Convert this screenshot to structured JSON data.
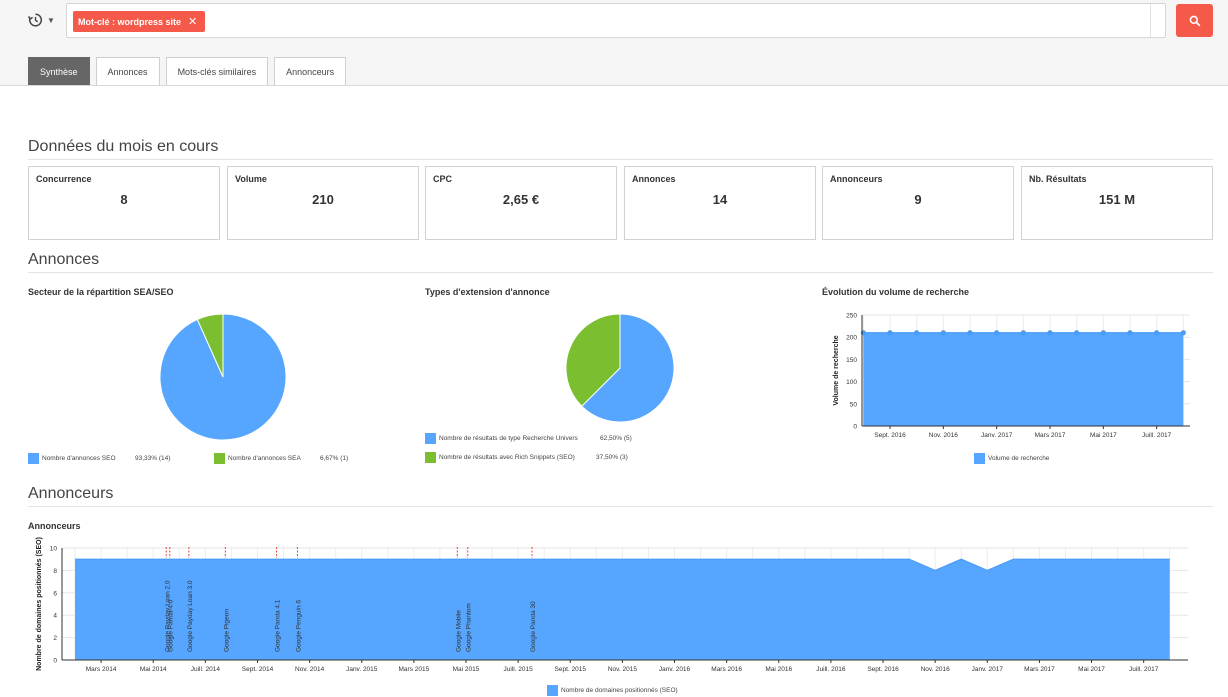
{
  "colors": {
    "accent": "#f4594a",
    "blue": "#56a5ff",
    "green": "#7bbf31",
    "event_line": "#e8453c"
  },
  "search": {
    "tag_label": "Mot-clé : wordpress site",
    "tag_close": "✕"
  },
  "tabs": [
    {
      "label": "Synthèse",
      "active": true
    },
    {
      "label": "Annonces",
      "active": false
    },
    {
      "label": "Mots-clés similaires",
      "active": false
    },
    {
      "label": "Annonceurs",
      "active": false
    }
  ],
  "sections": {
    "current_month": "Données du mois en cours",
    "annonces": "Annonces",
    "annonceurs": "Annonceurs"
  },
  "kpis": [
    {
      "label": "Concurrence",
      "value": "8"
    },
    {
      "label": "Volume",
      "value": "210"
    },
    {
      "label": "CPC",
      "value": "2,65 €"
    },
    {
      "label": "Annonces",
      "value": "14"
    },
    {
      "label": "Annonceurs",
      "value": "9"
    },
    {
      "label": "Nb. Résultats",
      "value": "151 M"
    }
  ],
  "chart_data": [
    {
      "type": "pie",
      "title": "Secteur de la répartition SEA/SEO",
      "legend_position": "bottom",
      "slices": [
        {
          "name": "Nombre d'annonces SEO",
          "value": 93.33,
          "label": "93,33% (14)",
          "color": "#56a5ff"
        },
        {
          "name": "Nombre d'annonces SEA",
          "value": 6.67,
          "label": "6,67% (1)",
          "color": "#7bbf31"
        }
      ]
    },
    {
      "type": "pie",
      "title": "Types d'extension d'annonce",
      "legend_position": "bottom",
      "slices": [
        {
          "name": "Nombre de résultats de type Recherche Univers",
          "value": 62.5,
          "label": "62,50% (5)",
          "color": "#56a5ff"
        },
        {
          "name": "Nombre de résultats avec Rich Snippets (SEO)",
          "value": 37.5,
          "label": "37,50% (3)",
          "color": "#7bbf31"
        }
      ]
    },
    {
      "type": "area",
      "title": "Évolution du volume de recherche",
      "ylabel": "Volume de recherche",
      "ylim": [
        0,
        250
      ],
      "yticks": [
        0,
        50,
        100,
        150,
        200,
        250
      ],
      "x_tick_labels": [
        "Sept. 2016",
        "Nov. 2016",
        "Janv. 2017",
        "Mars 2017",
        "Mai 2017",
        "Juill. 2017"
      ],
      "series": [
        {
          "name": "Volume de recherche",
          "color": "#56a5ff",
          "x": [
            "2016-08",
            "2016-09",
            "2016-10",
            "2016-11",
            "2016-12",
            "2017-01",
            "2017-02",
            "2017-03",
            "2017-04",
            "2017-05",
            "2017-06",
            "2017-07",
            "2017-08"
          ],
          "values": [
            210,
            210,
            210,
            210,
            210,
            210,
            210,
            210,
            210,
            210,
            210,
            210,
            210
          ]
        }
      ],
      "grid": true,
      "legend_position": "bottom"
    },
    {
      "type": "area",
      "title": "Annonceurs",
      "ylabel": "Nombre de domaines positionnés (SEO)",
      "ylim": [
        0,
        10
      ],
      "yticks": [
        0,
        2,
        4,
        6,
        8,
        10
      ],
      "x_tick_labels": [
        "Mars 2014",
        "Mai 2014",
        "Juill. 2014",
        "Sept. 2014",
        "Nov. 2014",
        "Janv. 2015",
        "Mars 2015",
        "Mai 2015",
        "Juill. 2015",
        "Sept. 2015",
        "Nov. 2015",
        "Janv. 2016",
        "Mars 2016",
        "Mai 2016",
        "Juill. 2016",
        "Sept. 2016",
        "Nov. 2016",
        "Janv. 2017",
        "Mars 2017",
        "Mai 2017",
        "Juill. 2017"
      ],
      "series": [
        {
          "name": "Nombre de domaines positionnés (SEO)",
          "color": "#56a5ff",
          "x": [
            "2014-02",
            "2016-10",
            "2016-11",
            "2016-12",
            "2017-01",
            "2017-02",
            "2017-08"
          ],
          "values": [
            9,
            9,
            8,
            9,
            8,
            9,
            9
          ]
        }
      ],
      "events": [
        {
          "label": "Google Payday Loan 2.0",
          "date": "2014-05-16"
        },
        {
          "label": "Google Panda 4.0",
          "date": "2014-05-20"
        },
        {
          "label": "Google Payday Loan 3.0",
          "date": "2014-06-12"
        },
        {
          "label": "Google Pigeon",
          "date": "2014-07-24"
        },
        {
          "label": "Google Panda 4.1",
          "date": "2014-09-23"
        },
        {
          "label": "Google Penguin 6",
          "date": "2014-10-17"
        },
        {
          "label": "Google Mobile",
          "date": "2015-04-21"
        },
        {
          "label": "Google Phantom",
          "date": "2015-05-03"
        },
        {
          "label": "Google Panda 30",
          "date": "2015-07-17"
        }
      ],
      "grid": true,
      "legend_position": "bottom"
    }
  ]
}
